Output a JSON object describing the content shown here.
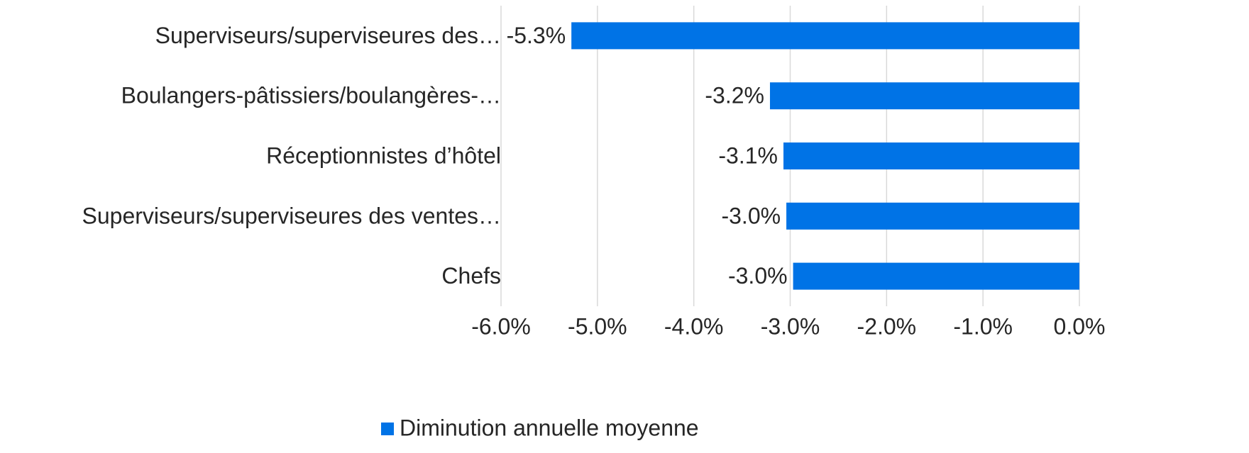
{
  "chart_data": {
    "type": "barh",
    "categories": [
      "Superviseurs/superviseures des…",
      "Boulangers-pâtissiers/boulangères-…",
      "Réceptionnistes d’hôtel",
      "Superviseurs/superviseures des ventes…",
      "Chefs"
    ],
    "series": [
      {
        "name": "Diminution annuelle moyenne",
        "color": "#0073e6",
        "values": [
          -5.27,
          -3.21,
          -3.07,
          -3.04,
          -2.97
        ],
        "value_labels": [
          "-5.3%",
          "-3.2%",
          "-3.1%",
          "-3.0%",
          "-3.0%"
        ]
      }
    ],
    "xlim": [
      -6,
      0
    ],
    "xticks": [
      {
        "value": -6,
        "label": "-6.0%"
      },
      {
        "value": -5,
        "label": "-5.0%"
      },
      {
        "value": -4,
        "label": "-4.0%"
      },
      {
        "value": -3,
        "label": "-3.0%"
      },
      {
        "value": -2,
        "label": "-2.0%"
      },
      {
        "value": -1,
        "label": "-1.0%"
      },
      {
        "value": 0,
        "label": "0.0%"
      }
    ],
    "grid": true,
    "legend": "bottom"
  }
}
